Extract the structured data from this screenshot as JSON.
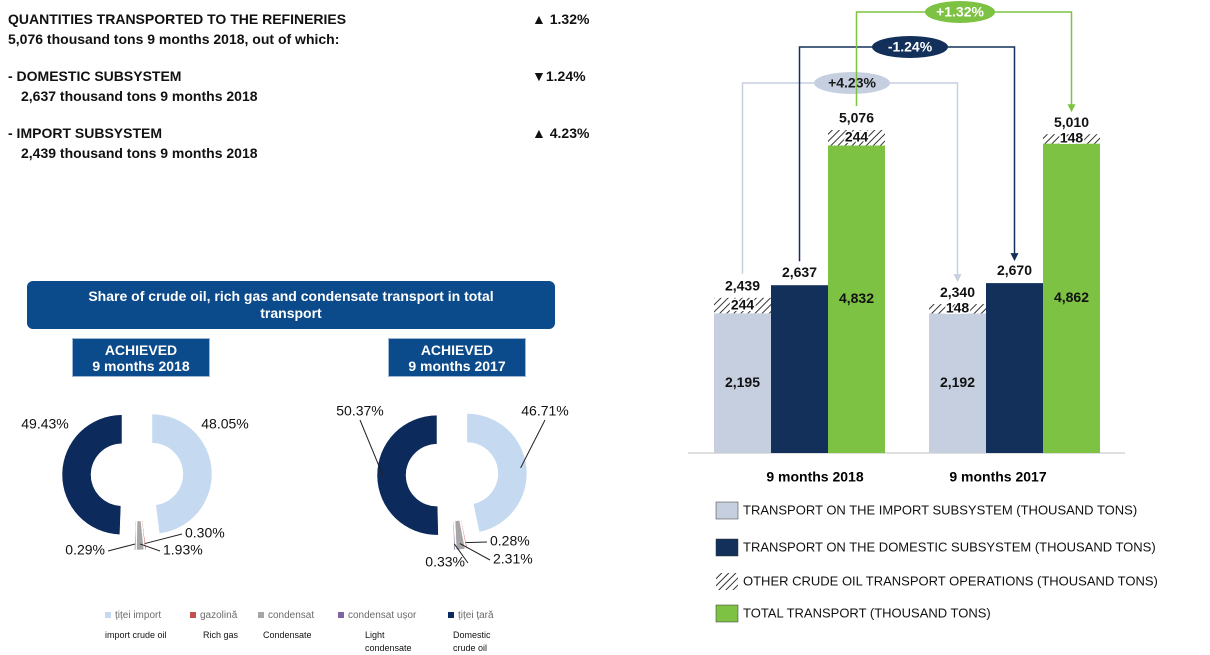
{
  "summary": [
    {
      "title": "QUANTITIES TRANSPORTED TO THE REFINERIES",
      "detail": "5,076 thousand tons 9 months 2018, out of which:",
      "change": "▲ 1.32%"
    },
    {
      "title": "- DOMESTIC SUBSYSTEM",
      "detail": "2,637 thousand tons 9 months 2018",
      "change": "▼1.24%"
    },
    {
      "title": "- IMPORT SUBSYSTEM",
      "detail": "2,439 thousand tons 9 months 2018",
      "change": "▲ 4.23%"
    }
  ],
  "share_banner": "Share of crude oil, rich gas and condensate transport in total transport",
  "legend": {
    "items": [
      {
        "name": "țiței import",
        "translation": "import crude oil",
        "color": "#c5d9f1"
      },
      {
        "name": "gazolină",
        "translation": "Rich gas",
        "color": "#c0504d"
      },
      {
        "name": "condensat",
        "translation": "Condensate",
        "color": "#a6a6a6"
      },
      {
        "name": "condensat ușor",
        "translation": "Light condensate",
        "color": "#8064a2"
      },
      {
        "name": "țiței țară",
        "translation": "Domestic crude oil",
        "color": "#0d2a5c"
      }
    ]
  },
  "chart_data": [
    {
      "type": "pie",
      "title": "ACHIEVED",
      "subtitle": "9 months 2018",
      "values": [
        48.05,
        0.3,
        1.93,
        0.29,
        49.43
      ],
      "value_labels": [
        "48.05%",
        "0.30%",
        "1.93%",
        "0.29%",
        "49.43%"
      ]
    },
    {
      "type": "pie",
      "title": "ACHIEVED",
      "subtitle": "9 months 2017",
      "values": [
        46.71,
        0.28,
        2.31,
        0.33,
        50.37
      ],
      "value_labels": [
        "46.71%",
        "0.28%",
        "2.31%",
        "0.33%",
        "50.37%"
      ]
    },
    {
      "type": "bar",
      "categories": [
        "9 months 2018",
        "9 months 2017"
      ],
      "series": [
        {
          "name": "TRANSPORT ON THE IMPORT SUBSYSTEM (THOUSAND TONS)",
          "color": "#c5cfe0",
          "values": [
            2195,
            2192
          ],
          "value_labels": [
            "2,195",
            "2,192"
          ]
        },
        {
          "name": "TRANSPORT ON THE DOMESTIC SUBSYSTEM (THOUSAND TONS)",
          "color": "#13305a",
          "values": [
            2637,
            2670
          ],
          "value_labels": [
            "2,637",
            "2,670"
          ]
        },
        {
          "name": "OTHER CRUDE OIL TRANSPORT OPERATIONS (THOUSAND TONS)",
          "pattern": "hatch",
          "values": [
            244,
            148
          ]
        },
        {
          "name": "TOTAL TRANSPORT (THOUSAND TONS)",
          "color": "#7dc242",
          "values": [
            4832,
            4862
          ],
          "value_labels": [
            "4,832",
            "4,862"
          ]
        }
      ],
      "stack_totals": [
        {
          "values": [
            2439,
            2340
          ],
          "value_labels": [
            "2,439",
            "2,340"
          ]
        },
        {
          "values": [
            5076,
            5010
          ],
          "value_labels": [
            "5,076",
            "5,010"
          ]
        }
      ],
      "annotations": [
        {
          "text": "+4.23%",
          "color": "#c5cfe0",
          "text_color": "#1a1a1a"
        },
        {
          "text": "-1.24%",
          "color": "#13305a",
          "text_color": "#ffffff"
        },
        {
          "text": "+1.32%",
          "color": "#7dc242",
          "text_color": "#ffffff"
        }
      ]
    }
  ]
}
